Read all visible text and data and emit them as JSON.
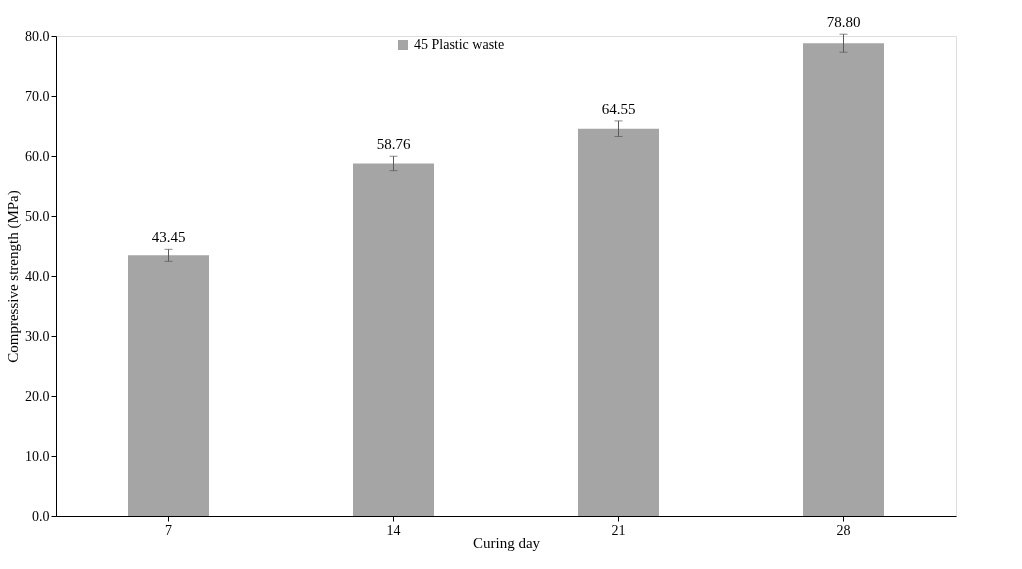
{
  "chart_data": {
    "type": "bar",
    "xlabel": "Curing day",
    "ylabel": "Compressive strength (MPa)",
    "categories": [
      "7",
      "14",
      "21",
      "28"
    ],
    "series": [
      {
        "name": "45 Plastic waste",
        "color": "#a5a5a5",
        "values": [
          43.45,
          58.76,
          64.55,
          78.8
        ],
        "errors": [
          1.0,
          1.2,
          1.3,
          1.5
        ]
      }
    ],
    "value_labels": [
      "43.45",
      "58.76",
      "64.55",
      "78.80"
    ],
    "ylim": [
      0,
      80
    ],
    "yticks": [
      {
        "value": 0,
        "label": "0.0"
      },
      {
        "value": 10,
        "label": "10.0"
      },
      {
        "value": 20,
        "label": "20.0"
      },
      {
        "value": 30,
        "label": "30.0"
      },
      {
        "value": 40,
        "label": "40.0"
      },
      {
        "value": 50,
        "label": "50.0"
      },
      {
        "value": 60,
        "label": "60.0"
      },
      {
        "value": 70,
        "label": "70.0"
      },
      {
        "value": 80,
        "label": "80.0"
      }
    ],
    "grid": false,
    "legend": "top"
  }
}
